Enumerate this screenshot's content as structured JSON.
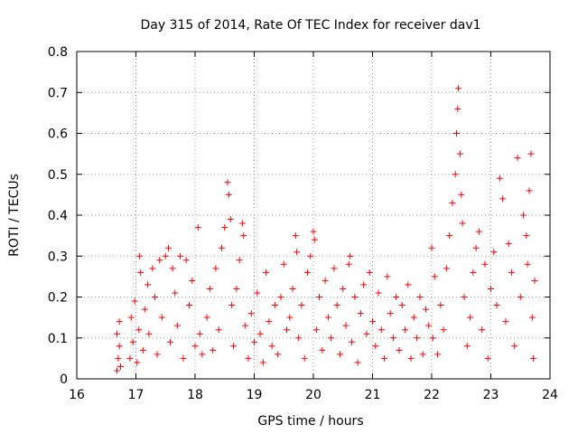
{
  "chart_data": {
    "type": "scatter",
    "title": "Day 315 of 2014, Rate Of TEC Index for receiver dav1",
    "xlabel": "GPS time / hours",
    "ylabel": "ROTI / TECUs",
    "xlim": [
      16,
      24
    ],
    "ylim": [
      0,
      0.8
    ],
    "xticks": [
      "16",
      "17",
      "18",
      "19",
      "20",
      "21",
      "22",
      "23",
      "24"
    ],
    "yticks": [
      "0",
      "0.1",
      "0.2",
      "0.3",
      "0.4",
      "0.5",
      "0.6",
      "0.7",
      "0.8"
    ],
    "grid": true,
    "marker": "+",
    "color": "#ff0000",
    "series": [
      {
        "name": "dav1",
        "points": [
          [
            16.68,
            0.02
          ],
          [
            16.68,
            0.11
          ],
          [
            16.7,
            0.05
          ],
          [
            16.72,
            0.14
          ],
          [
            16.72,
            0.08
          ],
          [
            16.74,
            0.03
          ],
          [
            16.9,
            0.05
          ],
          [
            16.92,
            0.15
          ],
          [
            16.95,
            0.09
          ],
          [
            16.98,
            0.19
          ],
          [
            17.02,
            0.04
          ],
          [
            17.05,
            0.12
          ],
          [
            17.06,
            0.3
          ],
          [
            17.08,
            0.26
          ],
          [
            17.12,
            0.07
          ],
          [
            17.15,
            0.17
          ],
          [
            17.2,
            0.23
          ],
          [
            17.22,
            0.11
          ],
          [
            17.28,
            0.27
          ],
          [
            17.32,
            0.2
          ],
          [
            17.36,
            0.06
          ],
          [
            17.4,
            0.29
          ],
          [
            17.44,
            0.15
          ],
          [
            17.5,
            0.3
          ],
          [
            17.55,
            0.32
          ],
          [
            17.58,
            0.09
          ],
          [
            17.62,
            0.27
          ],
          [
            17.66,
            0.21
          ],
          [
            17.7,
            0.13
          ],
          [
            17.75,
            0.3
          ],
          [
            17.8,
            0.05
          ],
          [
            17.85,
            0.29
          ],
          [
            17.9,
            0.18
          ],
          [
            17.95,
            0.24
          ],
          [
            18.0,
            0.08
          ],
          [
            18.05,
            0.37
          ],
          [
            18.08,
            0.11
          ],
          [
            18.12,
            0.06
          ],
          [
            18.2,
            0.15
          ],
          [
            18.25,
            0.22
          ],
          [
            18.3,
            0.07
          ],
          [
            18.35,
            0.27
          ],
          [
            18.4,
            0.12
          ],
          [
            18.45,
            0.32
          ],
          [
            18.5,
            0.37
          ],
          [
            18.55,
            0.48
          ],
          [
            18.57,
            0.45
          ],
          [
            18.6,
            0.39
          ],
          [
            18.62,
            0.18
          ],
          [
            18.65,
            0.08
          ],
          [
            18.7,
            0.22
          ],
          [
            18.75,
            0.29
          ],
          [
            18.8,
            0.38
          ],
          [
            18.82,
            0.35
          ],
          [
            18.85,
            0.13
          ],
          [
            18.9,
            0.05
          ],
          [
            18.95,
            0.16
          ],
          [
            19.0,
            0.09
          ],
          [
            19.05,
            0.21
          ],
          [
            19.1,
            0.11
          ],
          [
            19.15,
            0.04
          ],
          [
            19.2,
            0.26
          ],
          [
            19.25,
            0.14
          ],
          [
            19.3,
            0.08
          ],
          [
            19.35,
            0.18
          ],
          [
            19.4,
            0.06
          ],
          [
            19.45,
            0.2
          ],
          [
            19.5,
            0.28
          ],
          [
            19.55,
            0.12
          ],
          [
            19.6,
            0.15
          ],
          [
            19.65,
            0.22
          ],
          [
            19.7,
            0.35
          ],
          [
            19.72,
            0.31
          ],
          [
            19.75,
            0.1
          ],
          [
            19.8,
            0.18
          ],
          [
            19.85,
            0.05
          ],
          [
            19.9,
            0.26
          ],
          [
            19.95,
            0.3
          ],
          [
            20.0,
            0.36
          ],
          [
            20.02,
            0.34
          ],
          [
            20.05,
            0.12
          ],
          [
            20.1,
            0.2
          ],
          [
            20.15,
            0.07
          ],
          [
            20.2,
            0.24
          ],
          [
            20.25,
            0.15
          ],
          [
            20.3,
            0.1
          ],
          [
            20.35,
            0.27
          ],
          [
            20.4,
            0.18
          ],
          [
            20.45,
            0.06
          ],
          [
            20.5,
            0.22
          ],
          [
            20.55,
            0.13
          ],
          [
            20.6,
            0.28
          ],
          [
            20.62,
            0.3
          ],
          [
            20.65,
            0.09
          ],
          [
            20.7,
            0.2
          ],
          [
            20.75,
            0.04
          ],
          [
            20.8,
            0.16
          ],
          [
            20.85,
            0.23
          ],
          [
            20.9,
            0.11
          ],
          [
            20.95,
            0.26
          ],
          [
            21.0,
            0.14
          ],
          [
            21.05,
            0.08
          ],
          [
            21.1,
            0.21
          ],
          [
            21.15,
            0.12
          ],
          [
            21.2,
            0.05
          ],
          [
            21.25,
            0.25
          ],
          [
            21.3,
            0.16
          ],
          [
            21.35,
            0.1
          ],
          [
            21.4,
            0.2
          ],
          [
            21.45,
            0.07
          ],
          [
            21.5,
            0.18
          ],
          [
            21.55,
            0.12
          ],
          [
            21.6,
            0.23
          ],
          [
            21.65,
            0.05
          ],
          [
            21.7,
            0.15
          ],
          [
            21.75,
            0.1
          ],
          [
            21.8,
            0.2
          ],
          [
            21.85,
            0.06
          ],
          [
            21.9,
            0.17
          ],
          [
            21.95,
            0.13
          ],
          [
            22.0,
            0.32
          ],
          [
            22.02,
            0.1
          ],
          [
            22.05,
            0.25
          ],
          [
            22.1,
            0.06
          ],
          [
            22.15,
            0.18
          ],
          [
            22.2,
            0.12
          ],
          [
            22.25,
            0.27
          ],
          [
            22.3,
            0.35
          ],
          [
            22.35,
            0.43
          ],
          [
            22.4,
            0.5
          ],
          [
            22.42,
            0.6
          ],
          [
            22.44,
            0.66
          ],
          [
            22.45,
            0.71
          ],
          [
            22.48,
            0.55
          ],
          [
            22.5,
            0.45
          ],
          [
            22.52,
            0.38
          ],
          [
            22.55,
            0.2
          ],
          [
            22.6,
            0.08
          ],
          [
            22.65,
            0.15
          ],
          [
            22.7,
            0.26
          ],
          [
            22.75,
            0.32
          ],
          [
            22.8,
            0.36
          ],
          [
            22.85,
            0.12
          ],
          [
            22.9,
            0.28
          ],
          [
            22.95,
            0.05
          ],
          [
            23.0,
            0.22
          ],
          [
            23.05,
            0.31
          ],
          [
            23.1,
            0.18
          ],
          [
            23.15,
            0.49
          ],
          [
            23.2,
            0.44
          ],
          [
            23.25,
            0.14
          ],
          [
            23.3,
            0.33
          ],
          [
            23.35,
            0.26
          ],
          [
            23.4,
            0.08
          ],
          [
            23.45,
            0.54
          ],
          [
            23.5,
            0.2
          ],
          [
            23.55,
            0.4
          ],
          [
            23.6,
            0.35
          ],
          [
            23.62,
            0.28
          ],
          [
            23.65,
            0.46
          ],
          [
            23.68,
            0.55
          ],
          [
            23.7,
            0.15
          ],
          [
            23.72,
            0.05
          ],
          [
            23.74,
            0.24
          ]
        ]
      }
    ]
  }
}
